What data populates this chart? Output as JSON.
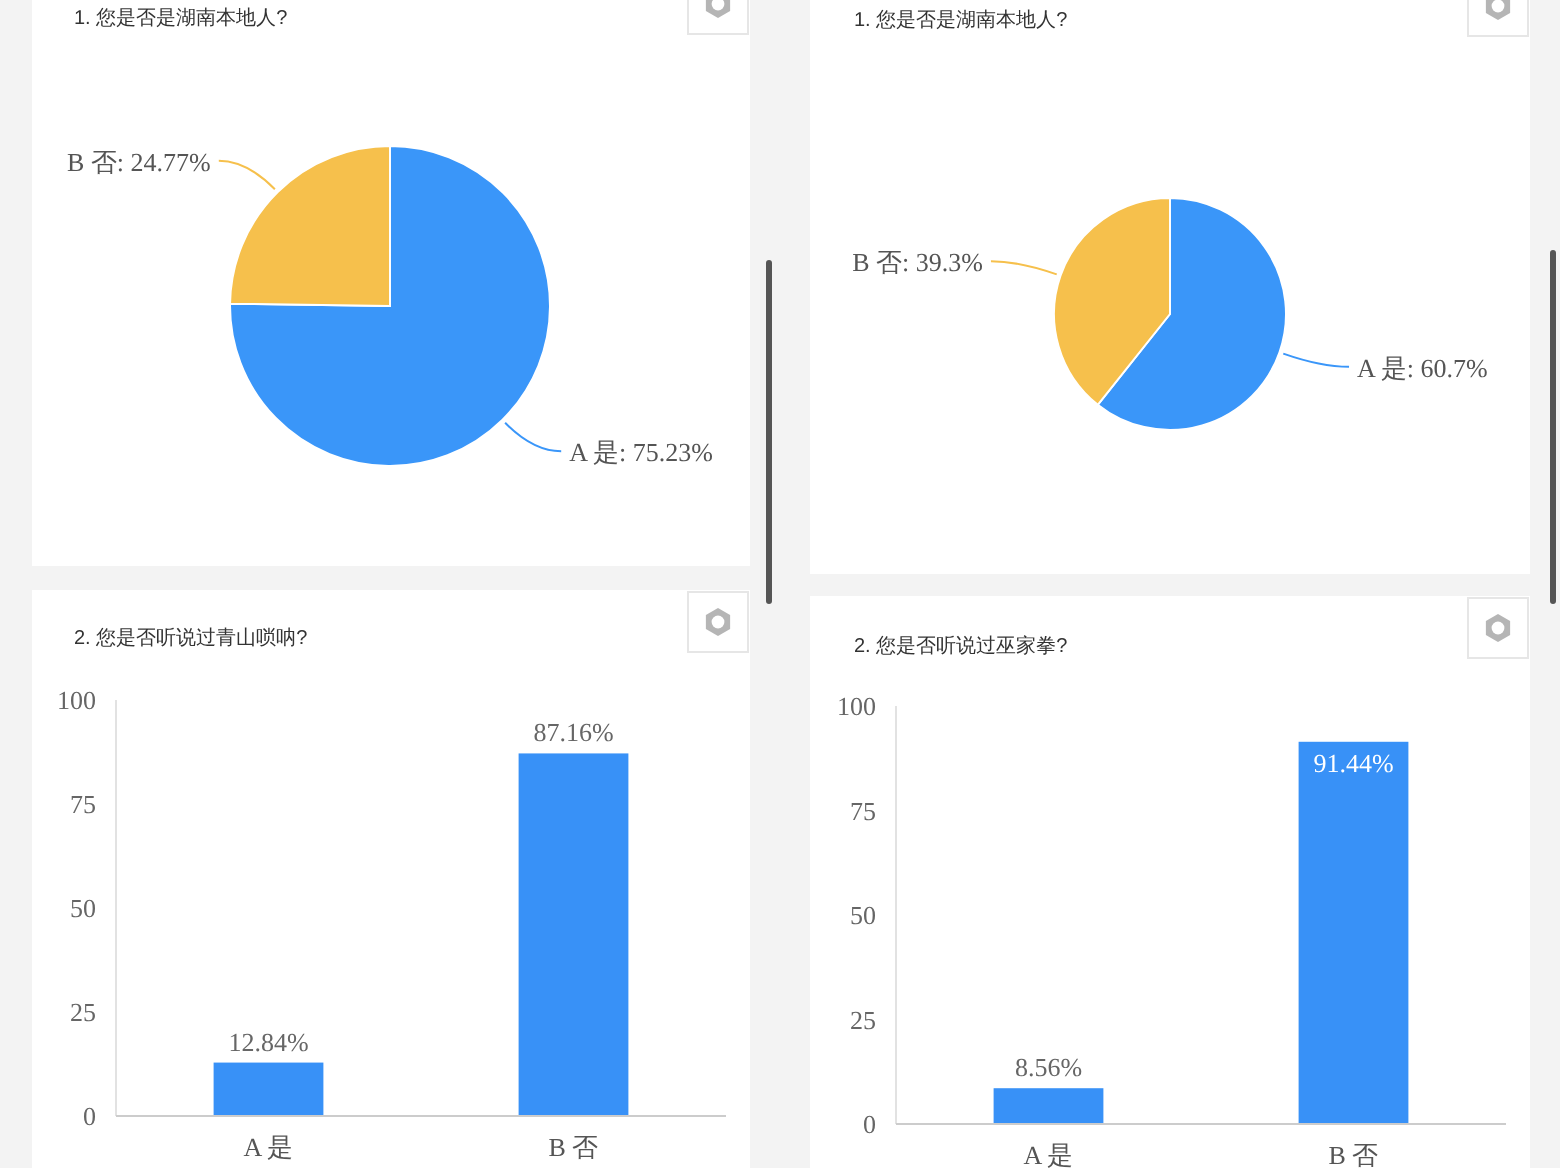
{
  "chart_data": [
    {
      "type": "pie",
      "title": "1. 您是否是湖南本地人?",
      "categories": [
        "A 是",
        "B 否"
      ],
      "values": [
        75.23,
        24.77
      ],
      "colors": [
        "#3a96f9",
        "#f6c04c"
      ],
      "value_labels": [
        "75.23%",
        "24.77%"
      ]
    },
    {
      "type": "pie",
      "title": "1. 您是否是湖南本地人?",
      "categories": [
        "A 是",
        "B 否"
      ],
      "values": [
        60.7,
        39.3
      ],
      "colors": [
        "#3a96f9",
        "#f6c04c"
      ],
      "value_labels": [
        "60.7%",
        "39.3%"
      ]
    },
    {
      "type": "bar",
      "title": "2. 您是否听说过青山唢呐?",
      "categories": [
        "A 是",
        "B 否"
      ],
      "values": [
        12.84,
        87.16
      ],
      "color": "#3891f7",
      "ylim": [
        0,
        100
      ],
      "yticks": [
        0,
        25,
        50,
        75,
        100
      ],
      "value_labels": [
        "12.84%",
        "87.16%"
      ]
    },
    {
      "type": "bar",
      "title": "2. 您是否听说过巫家拳?",
      "categories": [
        "A 是",
        "B 否"
      ],
      "values": [
        8.56,
        91.44
      ],
      "color": "#3891f7",
      "ylim": [
        0,
        100
      ],
      "yticks": [
        0,
        25,
        50,
        75,
        100
      ],
      "value_labels": [
        "8.56%",
        "91.44%"
      ]
    }
  ]
}
